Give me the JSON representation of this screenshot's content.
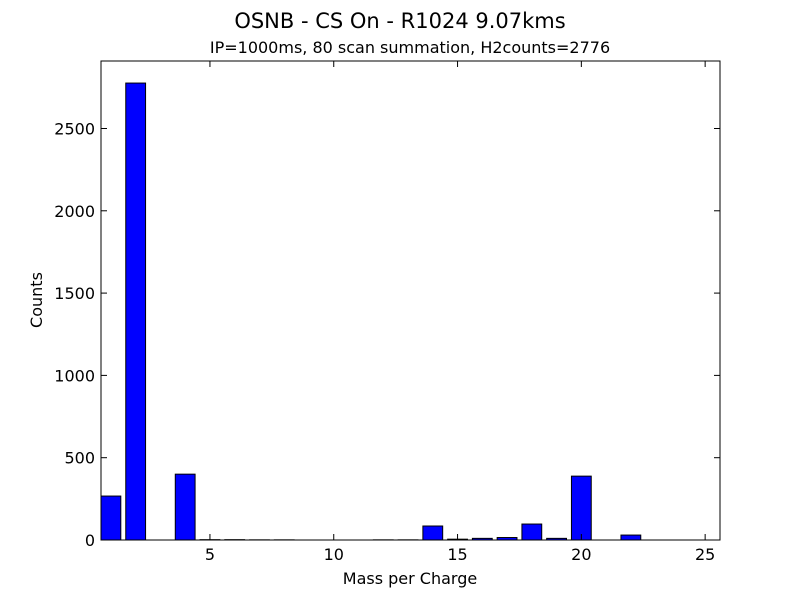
{
  "chart_data": {
    "type": "bar",
    "title": "OSNB - CS On - R1024 9.07kms",
    "subtitle": "IP=1000ms, 80 scan summation, H2counts=2776",
    "x_label": "Mass per Charge",
    "y_label": "Counts",
    "x": [
      1,
      2,
      3,
      4,
      5,
      6,
      7,
      8,
      9,
      10,
      11,
      12,
      13,
      14,
      15,
      16,
      17,
      18,
      19,
      20,
      21,
      22,
      23,
      24,
      25
    ],
    "values": [
      267,
      2776,
      0,
      400,
      2,
      2,
      1,
      1,
      0,
      0,
      0,
      1,
      1,
      85,
      5,
      10,
      15,
      97,
      10,
      388,
      0,
      30,
      0,
      0,
      0
    ],
    "bar_width": 0.8,
    "color": "#0000ff",
    "xlim": [
      0.6,
      25.6
    ],
    "ylim": [
      0,
      2910
    ],
    "xticks": [
      5,
      10,
      15,
      20,
      25
    ],
    "yticks": [
      0,
      500,
      1000,
      1500,
      2000,
      2500
    ]
  }
}
